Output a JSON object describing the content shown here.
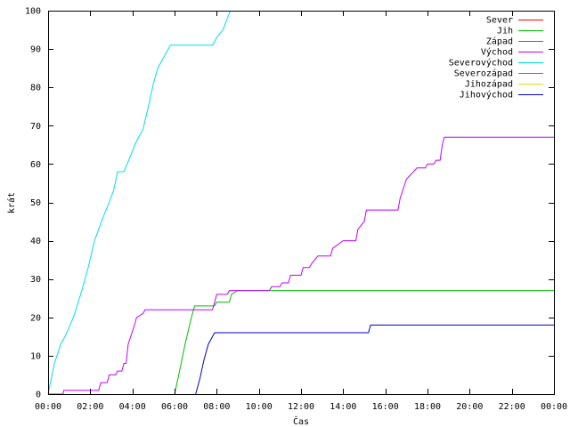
{
  "chart_data": {
    "type": "line",
    "title": "",
    "xlabel": "Čas",
    "ylabel": "krát",
    "xlim": [
      0,
      24
    ],
    "ylim": [
      0,
      100
    ],
    "x_ticks": [
      0,
      2,
      4,
      6,
      8,
      10,
      12,
      14,
      16,
      18,
      20,
      22,
      24
    ],
    "x_tick_labels": [
      "00:00",
      "02:00",
      "04:00",
      "06:00",
      "08:00",
      "10:00",
      "12:00",
      "14:00",
      "16:00",
      "18:00",
      "20:00",
      "22:00",
      "00:00"
    ],
    "y_ticks": [
      0,
      10,
      20,
      30,
      40,
      50,
      60,
      70,
      80,
      90,
      100
    ],
    "y_tick_labels": [
      "0",
      "10",
      "20",
      "30",
      "40",
      "50",
      "60",
      "70",
      "80",
      "90",
      "100"
    ],
    "legend_position": "top-right",
    "grid": false,
    "series": [
      {
        "name": "Sever",
        "color": "#ff0000",
        "x": [],
        "y": []
      },
      {
        "name": "Jih",
        "color": "#00c000",
        "x": [
          6.0,
          6.2,
          6.5,
          6.8,
          6.95,
          7.0,
          7.9,
          8.0,
          8.6,
          8.7,
          9.0,
          24.0
        ],
        "y": [
          0,
          5,
          13,
          20,
          23,
          23,
          23,
          24,
          24,
          26,
          27,
          27
        ]
      },
      {
        "name": "Západ",
        "color": "#0080ff",
        "x": [],
        "y": []
      },
      {
        "name": "Východ",
        "color": "#c000ff",
        "x": [
          0.0,
          0.7,
          0.75,
          2.4,
          2.5,
          2.8,
          2.9,
          3.2,
          3.3,
          3.5,
          3.6,
          3.7,
          3.8,
          4.1,
          4.2,
          4.5,
          4.6,
          7.8,
          7.9,
          8.0,
          8.5,
          8.6,
          10.5,
          10.6,
          11.0,
          11.1,
          11.4,
          11.5,
          12.0,
          12.1,
          12.4,
          12.5,
          12.8,
          13.4,
          13.5,
          14.0,
          14.6,
          14.7,
          15.0,
          15.1,
          16.6,
          16.7,
          17.0,
          17.5,
          17.9,
          18.0,
          18.3,
          18.4,
          18.6,
          18.7,
          18.8,
          24.0
        ],
        "y": [
          0,
          0,
          1,
          1,
          3,
          3,
          5,
          5,
          6,
          6,
          8,
          8,
          13,
          18,
          20,
          21,
          22,
          22,
          24,
          26,
          26,
          27,
          27,
          28,
          28,
          29,
          29,
          31,
          31,
          33,
          33,
          34,
          36,
          36,
          38,
          40,
          40,
          43,
          45,
          48,
          48,
          51,
          56,
          59,
          59,
          60,
          60,
          61,
          61,
          65,
          67,
          67
        ]
      },
      {
        "name": "Severovýchod",
        "color": "#00e0e0",
        "x": [
          0.0,
          0.3,
          0.6,
          0.8,
          1.2,
          1.6,
          1.9,
          2.2,
          2.4,
          2.6,
          2.9,
          3.1,
          3.3,
          3.6,
          3.9,
          4.2,
          4.5,
          4.8,
          5.0,
          5.2,
          5.5,
          5.8,
          6.0,
          7.8,
          8.0,
          8.3,
          8.5,
          8.65
        ],
        "y": [
          0,
          8,
          13,
          15,
          20,
          27,
          33,
          40,
          43,
          46,
          50,
          53,
          58,
          58,
          62,
          66,
          69,
          76,
          81,
          85,
          88,
          91,
          91,
          91,
          93,
          95,
          98,
          100
        ]
      },
      {
        "name": "Severozápad",
        "color": "#c06000",
        "x": [],
        "y": []
      },
      {
        "name": "Jihozápad",
        "color": "#e0e000",
        "x": [],
        "y": []
      },
      {
        "name": "Jihovýchod",
        "color": "#0000c0",
        "x": [
          7.0,
          7.2,
          7.4,
          7.6,
          7.8,
          7.9,
          8.0,
          15.2,
          15.3,
          24.0
        ],
        "y": [
          0,
          4,
          9,
          13,
          15,
          16,
          16,
          16,
          18,
          18
        ]
      }
    ]
  }
}
